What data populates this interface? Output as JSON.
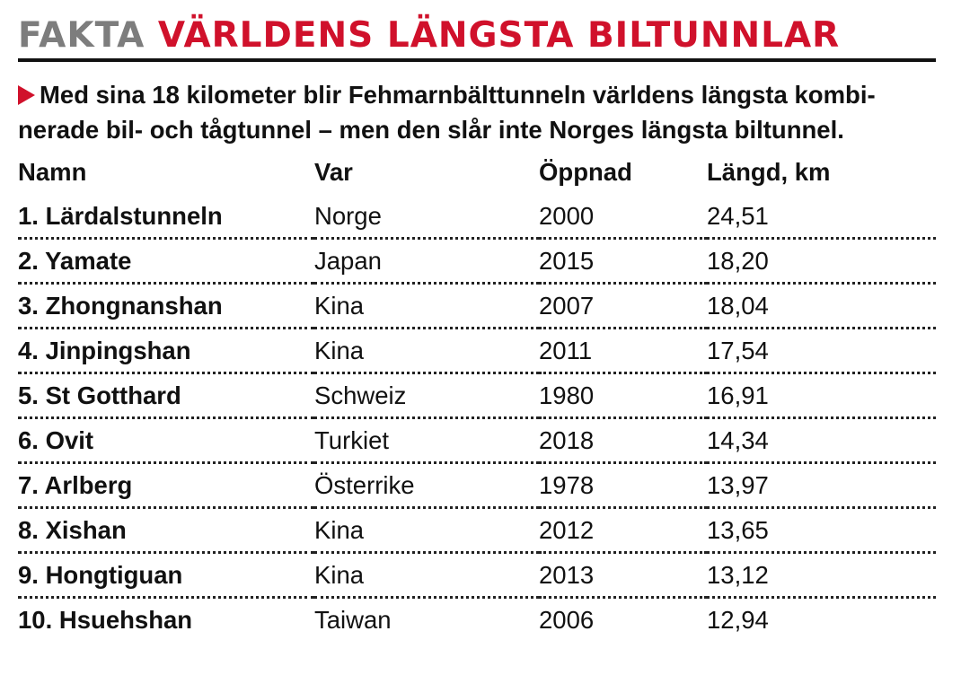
{
  "header": {
    "kicker": "FAKTA",
    "title": "VÄRLDENS LÄNGSTA BILTUNNLAR"
  },
  "intro": "Med sina 18 kilometer blir Fehmarnbälttunneln världens längsta kombi-nerade bil- och tågtunnel – men den slår inte Norges längsta biltunnel.",
  "table": {
    "columns": [
      "Namn",
      "Var",
      "Öppnad",
      "Längd, km"
    ],
    "rows": [
      [
        "1. Lärdalstunneln",
        "Norge",
        "2000",
        "24,51"
      ],
      [
        "2. Yamate",
        "Japan",
        "2015",
        "18,20"
      ],
      [
        "3. Zhongnanshan",
        "Kina",
        "2007",
        "18,04"
      ],
      [
        "4. Jinpingshan",
        "Kina",
        "2011",
        "17,54"
      ],
      [
        "5. St Gotthard",
        "Schweiz",
        "1980",
        "16,91"
      ],
      [
        "6. Ovit",
        "Turkiet",
        "2018",
        "14,34"
      ],
      [
        "7. Arlberg",
        "Österrike",
        "1978",
        "13,97"
      ],
      [
        "8. Xishan",
        "Kina",
        "2012",
        "13,65"
      ],
      [
        "9. Hongtiguan",
        "Kina",
        "2013",
        "13,12"
      ],
      [
        "10. Hsuehshan",
        "Taiwan",
        "2006",
        "12,94"
      ]
    ]
  },
  "colors": {
    "accent": "#d0112b",
    "kicker": "#7d7d7d",
    "text": "#111111"
  }
}
